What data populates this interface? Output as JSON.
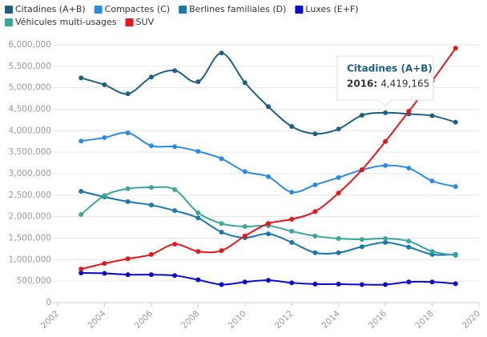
{
  "chart_data": {
    "type": "line",
    "x": [
      2003,
      2004,
      2005,
      2006,
      2007,
      2008,
      2009,
      2010,
      2011,
      2012,
      2013,
      2014,
      2015,
      2016,
      2017,
      2018,
      2019
    ],
    "series": [
      {
        "name": "Citadines (A+B)",
        "color": "#1d6085",
        "values": [
          5230000,
          5070000,
          4860000,
          5250000,
          5400000,
          5140000,
          5810000,
          5120000,
          4560000,
          4100000,
          3930000,
          4040000,
          4360000,
          4419165,
          4390000,
          4350000,
          4200000
        ]
      },
      {
        "name": "Compactes (C)",
        "color": "#2a8ae8",
        "values": [
          3760000,
          3840000,
          3950000,
          3650000,
          3630000,
          3520000,
          3350000,
          3050000,
          2930000,
          2570000,
          2740000,
          2910000,
          3090000,
          3190000,
          3130000,
          2830000,
          2700000
        ]
      },
      {
        "name": "Berlines familiales (D)",
        "color": "#1878ad",
        "values": [
          2590000,
          2460000,
          2350000,
          2270000,
          2140000,
          1970000,
          1640000,
          1510000,
          1600000,
          1400000,
          1160000,
          1160000,
          1300000,
          1400000,
          1290000,
          1120000,
          1120000
        ]
      },
      {
        "name": "Luxes (E+F)",
        "color": "#0a0ad0",
        "values": [
          690000,
          680000,
          650000,
          650000,
          630000,
          530000,
          420000,
          480000,
          520000,
          460000,
          430000,
          430000,
          420000,
          420000,
          480000,
          480000,
          440000
        ]
      },
      {
        "name": "Véhicules multi-usages",
        "color": "#3aa79d",
        "values": [
          2050000,
          2490000,
          2650000,
          2680000,
          2630000,
          2090000,
          1840000,
          1770000,
          1790000,
          1660000,
          1550000,
          1490000,
          1470000,
          1490000,
          1430000,
          1190000,
          1100000
        ]
      },
      {
        "name": "SUV",
        "color": "#e8151b",
        "values": [
          780000,
          910000,
          1020000,
          1120000,
          1360000,
          1190000,
          1210000,
          1550000,
          1840000,
          1940000,
          2120000,
          2550000,
          3090000,
          3750000,
          4450000,
          5160000,
          5920000
        ]
      }
    ],
    "xlim": [
      2002,
      2020
    ],
    "xticks": [
      2002,
      2004,
      2006,
      2008,
      2010,
      2012,
      2014,
      2016,
      2018,
      2020
    ],
    "ylim": [
      0,
      6000000
    ],
    "yticks": [
      0,
      {
        "value": 500000,
        "label": "500,000"
      },
      {
        "value": 1000000,
        "label": "1,000,000"
      },
      {
        "value": 1500000,
        "label": "1,500,000"
      },
      {
        "value": 2000000,
        "label": "2,000,000"
      },
      {
        "value": 2500000,
        "label": "2,500,000"
      },
      {
        "value": 3000000,
        "label": "3,000,000"
      },
      {
        "value": 3500000,
        "label": "3,500,000"
      },
      {
        "value": 4000000,
        "label": "4,000,000"
      },
      {
        "value": 4500000,
        "label": "4,500,000"
      },
      {
        "value": 5000000,
        "label": "5,000,000"
      },
      {
        "value": 5500000,
        "label": "5,500,000"
      },
      {
        "value": 6000000,
        "label": "6,000,000"
      }
    ],
    "grid": true,
    "tooltip": {
      "title": "Citadines (A+B)",
      "x_label": "2016:",
      "value_label": "4,419,165"
    }
  }
}
